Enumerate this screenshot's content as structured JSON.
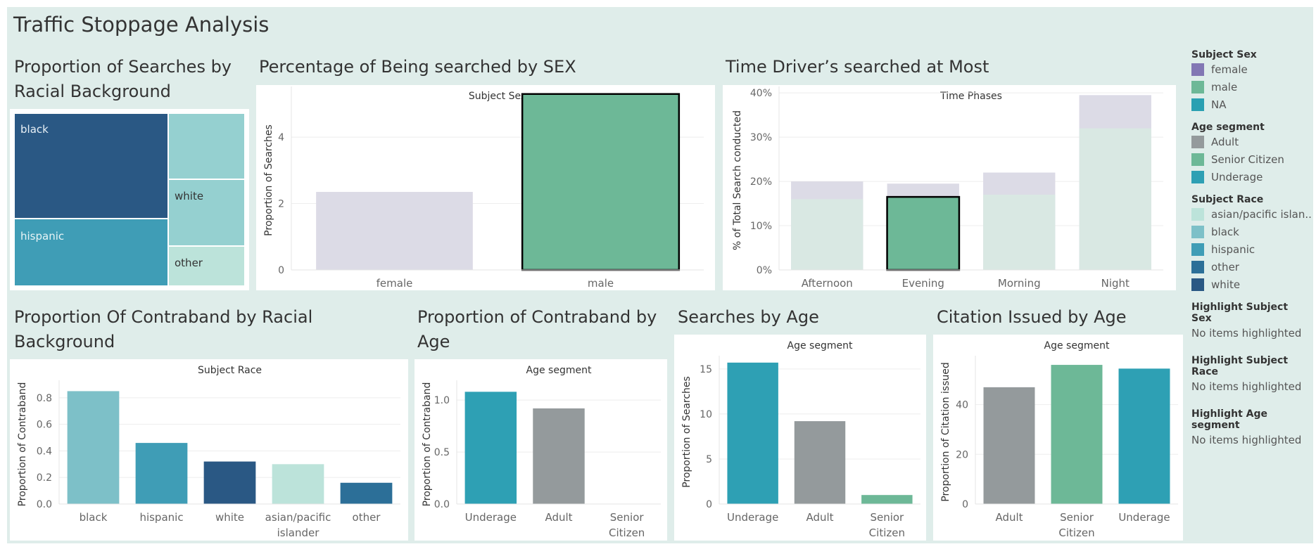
{
  "dashboard": {
    "title": "Traffic Stoppage Analysis"
  },
  "colors": {
    "background": "#dfedea",
    "female": "#dcdbe6",
    "male": "#6db897",
    "na": "#2aa0b2",
    "adult": "#949a9c",
    "senior": "#6db897",
    "underage": "#2ea0b4",
    "asian": "#bce3da",
    "black_race": "#7dc0c8",
    "hispanic": "#3f9db6",
    "other": "#2c6f98",
    "white": "#2a5884",
    "time_top": "#dcdbe6",
    "time_base": "#d9e8e3"
  },
  "sheets": {
    "treemap": {
      "title": "Proportion of Searches by Racial Background",
      "labels": {
        "black": "black",
        "white": "white",
        "hispanic": "hispanic",
        "other": "other"
      }
    },
    "sex": {
      "title": "Percentage of Being searched by SEX",
      "header": "Subject Sex",
      "ylabel": "Proportion of Searches"
    },
    "time": {
      "title": "Time Driver’s searched at Most",
      "header": "Time Phases",
      "ylabel": "% of Total Search conducted"
    },
    "contraband_race": {
      "title": "Proportion Of Contraband by Racial Background",
      "header": "Subject Race",
      "ylabel": "Proportion of Contraband"
    },
    "contraband_age": {
      "title": "Proportion of Contraband by Age",
      "header": "Age segment",
      "ylabel": "Proportion of Contraband"
    },
    "searches_age": {
      "title": "Searches by Age",
      "header": "Age segment",
      "ylabel": "Proportion of Searches"
    },
    "citation_age": {
      "title": "Citation Issued by Age",
      "header": "Age segment",
      "ylabel": "Proportion of Citation issued"
    }
  },
  "legend": {
    "groups": [
      {
        "title": "Subject Sex",
        "items": [
          {
            "label": "female",
            "color": "#8277b4"
          },
          {
            "label": "male",
            "color": "#6db897"
          },
          {
            "label": "NA",
            "color": "#2aa0b2"
          }
        ]
      },
      {
        "title": "Age segment",
        "items": [
          {
            "label": "Adult",
            "color": "#949a9c"
          },
          {
            "label": "Senior Citizen",
            "color": "#6db897"
          },
          {
            "label": "Underage",
            "color": "#2ea0b4"
          }
        ]
      },
      {
        "title": "Subject Race",
        "items": [
          {
            "label": "asian/pacific islan..",
            "color": "#bce3da"
          },
          {
            "label": "black",
            "color": "#7dc0c8"
          },
          {
            "label": "hispanic",
            "color": "#3f9db6"
          },
          {
            "label": "other",
            "color": "#2c6f98"
          },
          {
            "label": "white",
            "color": "#2a5884"
          }
        ]
      }
    ],
    "highlights": [
      {
        "title": "Highlight Subject Sex",
        "text": "No items highlighted"
      },
      {
        "title": "Highlight Subject Race",
        "text": "No items highlighted"
      },
      {
        "title": "Highlight Age segment",
        "text": "No items highlighted"
      }
    ]
  },
  "chart_data": [
    {
      "id": "treemap",
      "type": "treemap",
      "title": "Proportion of Searches by Racial Background",
      "categories": [
        "black",
        "hispanic",
        "white",
        "other",
        "asian/pacific islander"
      ],
      "values": [
        0.4,
        0.27,
        0.17,
        0.07,
        0.09
      ]
    },
    {
      "id": "sex",
      "type": "bar",
      "categories": [
        "female",
        "male"
      ],
      "values": [
        2.35,
        5.3
      ],
      "ylim": [
        0,
        5.4
      ],
      "yticks": [
        0,
        2,
        4
      ],
      "xlabel": "Subject Sex",
      "ylabel": "Proportion of Searches",
      "highlighted": "male"
    },
    {
      "id": "time",
      "type": "bar",
      "categories": [
        "Afternoon",
        "Evening",
        "Morning",
        "Night"
      ],
      "series": [
        {
          "values": [
            16,
            16.5,
            17,
            32
          ]
        },
        {
          "values": [
            20,
            19.5,
            22,
            39.5
          ]
        }
      ],
      "ylim": [
        0,
        40.5
      ],
      "yticks": [
        "0%",
        "10%",
        "20%",
        "30%",
        "40%"
      ],
      "xlabel": "Time Phases",
      "ylabel": "% of Total Search conducted",
      "highlighted": "Evening"
    },
    {
      "id": "contraband_race",
      "type": "bar",
      "categories": [
        "black",
        "hispanic",
        "white",
        "asian/pacific islander",
        "other"
      ],
      "values": [
        0.85,
        0.46,
        0.32,
        0.3,
        0.16
      ],
      "ylim": [
        0,
        0.9
      ],
      "yticks": [
        "0.0",
        "0.2",
        "0.4",
        "0.6",
        "0.8"
      ],
      "xlabel": "Subject Race",
      "ylabel": "Proportion of Contraband"
    },
    {
      "id": "contraband_age",
      "type": "bar",
      "categories": [
        "Underage",
        "Adult",
        "Senior Citizen"
      ],
      "values": [
        1.08,
        0.92,
        0
      ],
      "ylim": [
        0,
        1.15
      ],
      "yticks": [
        "0.0",
        "0.5",
        "1.0"
      ],
      "xlabel": "Age segment",
      "ylabel": "Proportion of Contraband"
    },
    {
      "id": "searches_age",
      "type": "bar",
      "categories": [
        "Underage",
        "Adult",
        "Senior Citizen"
      ],
      "values": [
        15.7,
        9.2,
        1.0
      ],
      "ylim": [
        0,
        16
      ],
      "yticks": [
        "0",
        "5",
        "10",
        "15"
      ],
      "xlabel": "Age segment",
      "ylabel": "Proportion of Searches"
    },
    {
      "id": "citation_age",
      "type": "bar",
      "categories": [
        "Adult",
        "Senior Citizen",
        "Underage"
      ],
      "values": [
        47,
        56,
        54.5
      ],
      "ylim": [
        0,
        58
      ],
      "yticks": [
        "0",
        "20",
        "40"
      ],
      "xlabel": "Age segment",
      "ylabel": "Proportion of Citation issued"
    }
  ]
}
